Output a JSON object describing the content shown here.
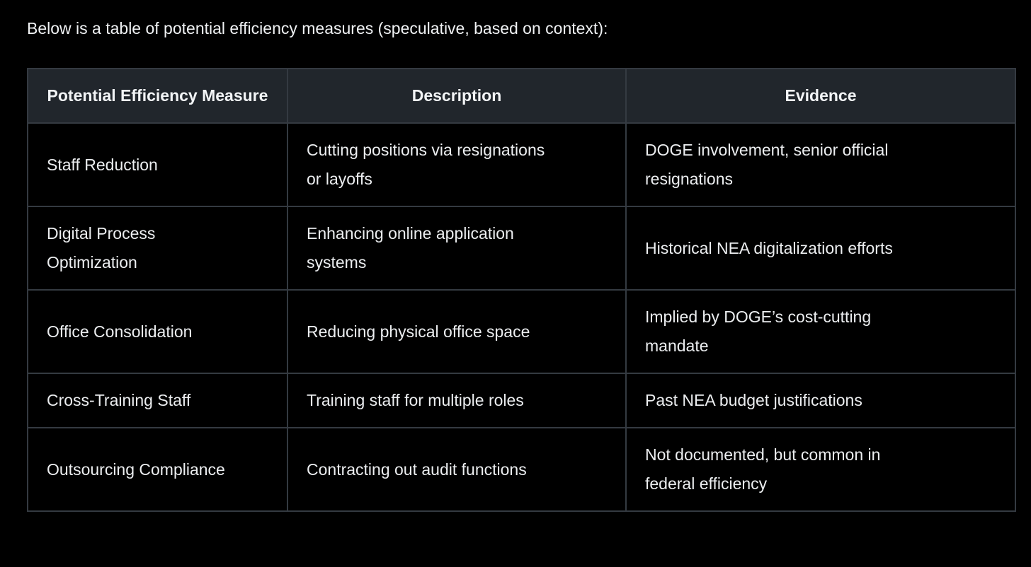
{
  "intro": {
    "text": "Below is a table of potential efficiency measures (speculative, based on context):"
  },
  "colors": {
    "page_background": "#000000",
    "header_background": "#21262c",
    "cell_background": "#000000",
    "border": "#343a41",
    "text": "#eceef0"
  },
  "table": {
    "columns": [
      "Potential Efficiency Measure",
      "Description",
      "Evidence"
    ],
    "rows": [
      [
        "Staff Reduction",
        "Cutting positions via resignations\nor layoffs",
        "DOGE involvement, senior official\nresignations"
      ],
      [
        "Digital Process\nOptimization",
        "Enhancing online application\nsystems",
        "Historical NEA digitalization efforts"
      ],
      [
        "Office Consolidation",
        "Reducing physical office space",
        "Implied by DOGE’s cost-cutting\nmandate"
      ],
      [
        "Cross-Training Staff",
        "Training staff for multiple roles",
        "Past NEA budget justifications"
      ],
      [
        "Outsourcing Compliance",
        "Contracting out audit functions",
        "Not documented, but common in\nfederal efficiency"
      ]
    ]
  }
}
